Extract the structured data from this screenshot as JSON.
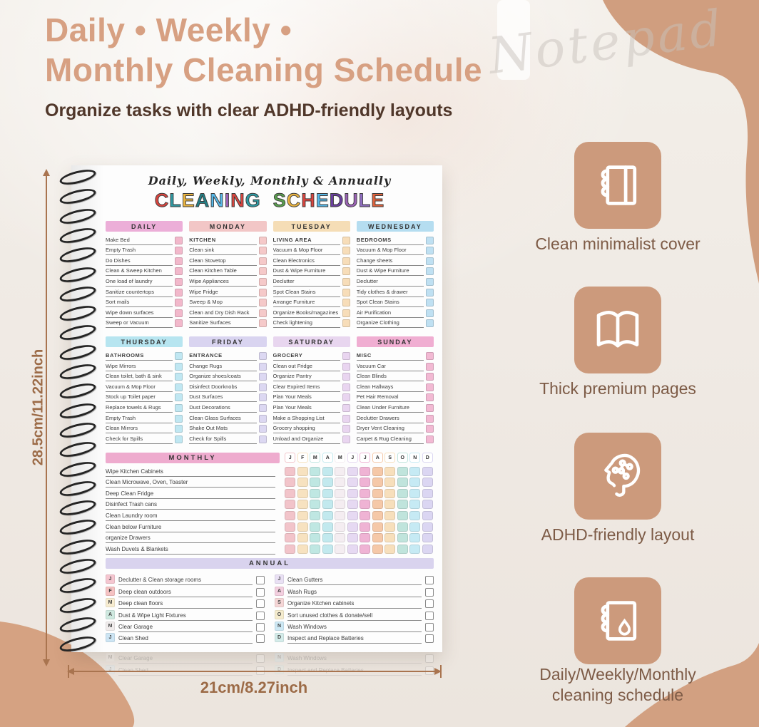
{
  "header": {
    "title_line1": "Daily • Weekly •",
    "title_line2": "Monthly Cleaning Schedule",
    "subtitle": "Organize tasks with clear ADHD-friendly layouts",
    "watermark": "Notepad"
  },
  "colors": {
    "accent_tan": "#cc9a7c",
    "title_tan": "#d7a082",
    "dimension_brown": "#9c6b47",
    "subtitle_brown": "#50372a"
  },
  "planner": {
    "script_header": "Daily, Weekly, Monthly & Annually",
    "title_text": "CLEANING SCHEDULE",
    "title_letters": [
      {
        "ch": "C",
        "color": "#d9453f"
      },
      {
        "ch": "L",
        "color": "#2f9aa3"
      },
      {
        "ch": "E",
        "color": "#eab440"
      },
      {
        "ch": "A",
        "color": "#237f86"
      },
      {
        "ch": "N",
        "color": "#57b8e8"
      },
      {
        "ch": "I",
        "color": "#9a62b5"
      },
      {
        "ch": "N",
        "color": "#d9453f"
      },
      {
        "ch": "G",
        "color": "#2f9aa3"
      },
      {
        "ch": " ",
        "color": "#000000"
      },
      {
        "ch": "S",
        "color": "#5aa04e"
      },
      {
        "ch": "C",
        "color": "#eab440"
      },
      {
        "ch": "H",
        "color": "#d9453f"
      },
      {
        "ch": "E",
        "color": "#57b8e8"
      },
      {
        "ch": "D",
        "color": "#6a3f9e"
      },
      {
        "ch": "U",
        "color": "#9a62b5"
      },
      {
        "ch": "L",
        "color": "#8f6dc0"
      },
      {
        "ch": "E",
        "color": "#e2633c"
      }
    ],
    "day_panels": [
      {
        "day": "DAILY",
        "header_bg": "#ecaed8",
        "checkbox_color": "#f2b8cb",
        "rows": [
          {
            "text": "Make Bed"
          },
          {
            "text": "Empty Trash"
          },
          {
            "text": "Do Dishes"
          },
          {
            "text": "Clean & Sweep Kitchen"
          },
          {
            "text": "One load of laundry"
          },
          {
            "text": "Sanitize countertops"
          },
          {
            "text": "Sort mails"
          },
          {
            "text": "Wipe down surfaces"
          },
          {
            "text": "Sweep or Vacuum"
          }
        ]
      },
      {
        "day": "MONDAY",
        "header_bg": "#f2c6c6",
        "checkbox_color": "#f5c9c9",
        "rows": [
          {
            "text": "KITCHEN",
            "bold": true
          },
          {
            "text": "Clean sink"
          },
          {
            "text": "Clean Stovetop"
          },
          {
            "text": "Clean Kitchen Table"
          },
          {
            "text": "Wipe Appliances"
          },
          {
            "text": "Wipe Fridge"
          },
          {
            "text": "Sweep & Mop"
          },
          {
            "text": "Clean and Dry Dish Rack"
          },
          {
            "text": "Sanitize Surfaces"
          }
        ]
      },
      {
        "day": "TUESDAY",
        "header_bg": "#f5ddb6",
        "checkbox_color": "#f7ddb9",
        "rows": [
          {
            "text": "LIVING AREA",
            "bold": true
          },
          {
            "text": "Vacuum & Mop Floor"
          },
          {
            "text": "Clean Electronics"
          },
          {
            "text": "Dust & Wipe Furniture"
          },
          {
            "text": "Declutter"
          },
          {
            "text": "Spot Clean Stains"
          },
          {
            "text": "Arrange Furniture"
          },
          {
            "text": "Organize Books/magazines"
          },
          {
            "text": "Check lightening"
          }
        ]
      },
      {
        "day": "WEDNESDAY",
        "header_bg": "#b5ddf0",
        "checkbox_color": "#bfe0f2",
        "rows": [
          {
            "text": "BEDROOMS",
            "bold": true
          },
          {
            "text": "Vacuum & Mop Floor"
          },
          {
            "text": "Change sheets"
          },
          {
            "text": "Dust & Wipe Furniture"
          },
          {
            "text": "Declutter"
          },
          {
            "text": "Tidy clothes & drawer"
          },
          {
            "text": "Spot Clean Stains"
          },
          {
            "text": "Air Purification"
          },
          {
            "text": "Organize Clothing"
          }
        ]
      },
      {
        "day": "THURSDAY",
        "header_bg": "#b7e5f0",
        "checkbox_color": "#c0e7f2",
        "rows": [
          {
            "text": "BATHROOMS",
            "bold": true
          },
          {
            "text": "Wipe Mirrors"
          },
          {
            "text": "Clean toilet, bath & sink"
          },
          {
            "text": "Vacuum & Mop Floor"
          },
          {
            "text": "Stock up Toilet paper"
          },
          {
            "text": "Replace towels & Rugs"
          },
          {
            "text": "Empty Trash"
          },
          {
            "text": "Clean Mirrors"
          },
          {
            "text": "Check for Spills"
          }
        ]
      },
      {
        "day": "FRIDAY",
        "header_bg": "#d9d4f0",
        "checkbox_color": "#dcd8f2",
        "rows": [
          {
            "text": "ENTRANCE",
            "bold": true
          },
          {
            "text": "Change Rugs"
          },
          {
            "text": "Organize shoes/coats"
          },
          {
            "text": "Disinfect Doorknobs"
          },
          {
            "text": "Dust Surfaces"
          },
          {
            "text": "Dust Decorations"
          },
          {
            "text": "Clean Glass Surfaces"
          },
          {
            "text": "Shake Out Mats"
          },
          {
            "text": "Check for Spills"
          }
        ]
      },
      {
        "day": "SATURDAY",
        "header_bg": "#e8d6ef",
        "checkbox_color": "#e9d5f0",
        "rows": [
          {
            "text": "GROCERY",
            "bold": true
          },
          {
            "text": "Clean out Fridge"
          },
          {
            "text": "Organize Pantry"
          },
          {
            "text": "Clear Expired Items"
          },
          {
            "text": "Plan Your Meals"
          },
          {
            "text": "Plan Your Meals"
          },
          {
            "text": "Make a Shopping List"
          },
          {
            "text": "Grocery shopping"
          },
          {
            "text": "Unload and Organize"
          }
        ]
      },
      {
        "day": "SUNDAY",
        "header_bg": "#f0aed2",
        "checkbox_color": "#f2b9d3",
        "rows": [
          {
            "text": "MISC",
            "bold": true
          },
          {
            "text": "Vacuum Car"
          },
          {
            "text": "Clean Blinds"
          },
          {
            "text": "Clean Hallways"
          },
          {
            "text": "Pet Hair Removal"
          },
          {
            "text": "Clean Under Furniture"
          },
          {
            "text": "Declutter Drawers"
          },
          {
            "text": "Dryer Vent Cleaning"
          },
          {
            "text": "Carpet & Rug Cleaning"
          }
        ]
      }
    ],
    "monthly": {
      "label": "MONTHLY",
      "months": [
        "J",
        "F",
        "M",
        "A",
        "M",
        "J",
        "J",
        "A",
        "S",
        "O",
        "N",
        "D"
      ],
      "month_colors": [
        "#f2c4ca",
        "#f7e2c0",
        "#bfe7e2",
        "#c2e9ee",
        "#f4edf1",
        "#e6d9f2",
        "#efb3d4",
        "#f5c8a8",
        "#f7dfbc",
        "#c0e4dc",
        "#c6eaf4",
        "#dbd6f2"
      ],
      "rows": [
        "Wipe Kitchen Cabinets",
        "Clean Microwave, Oven, Toaster",
        "Deep Clean Fridge",
        "Disinfect Trash cans",
        "Clean Laundry room",
        "Clean below Furniture",
        "organize Drawers",
        "Wash Duvets & Blankets"
      ]
    },
    "annual": {
      "label": "ANNUAL",
      "left": [
        {
          "badge": "J",
          "badge_color": "#f5c6d0",
          "text": "Declutter & Clean storage rooms"
        },
        {
          "badge": "F",
          "badge_color": "#f5c2c2",
          "text": "Deep clean outdoors"
        },
        {
          "badge": "M",
          "badge_color": "#f7ecd0",
          "text": "Deep clean floors"
        },
        {
          "badge": "A",
          "badge_color": "#cfe9e0",
          "text": "Dust & Wipe Light Fixtures"
        },
        {
          "badge": "M",
          "badge_color": "#f0ecec",
          "text": "Clear Garage"
        },
        {
          "badge": "J",
          "badge_color": "#cde5f4",
          "text": "Clean Shed"
        }
      ],
      "right": [
        {
          "badge": "J",
          "badge_color": "#e9e0f4",
          "text": "Clean Gutters"
        },
        {
          "badge": "A",
          "badge_color": "#f3cfdf",
          "text": "Wash Rugs"
        },
        {
          "badge": "S",
          "badge_color": "#f5d6d6",
          "text": "Organize Kitchen cabinets"
        },
        {
          "badge": "O",
          "badge_color": "#f5ecce",
          "text": "Sort unused clothes & donate/sell"
        },
        {
          "badge": "N",
          "badge_color": "#cde8f4",
          "text": "Wash Windows"
        },
        {
          "badge": "D",
          "badge_color": "#d4ecea",
          "text": "Inspect and Replace Batteries"
        }
      ]
    }
  },
  "dimensions": {
    "height_label": "28.5cm/11.22inch",
    "width_label": "21cm/8.27inch"
  },
  "features": [
    {
      "icon": "notebook-cover-icon",
      "label": "Clean minimalist cover"
    },
    {
      "icon": "open-book-icon",
      "label": "Thick premium pages"
    },
    {
      "icon": "head-brain-icon",
      "label": "ADHD-friendly layout"
    },
    {
      "icon": "notebook-droplet-icon",
      "label": "Daily/Weekly/Monthly cleaning schedule"
    }
  ]
}
